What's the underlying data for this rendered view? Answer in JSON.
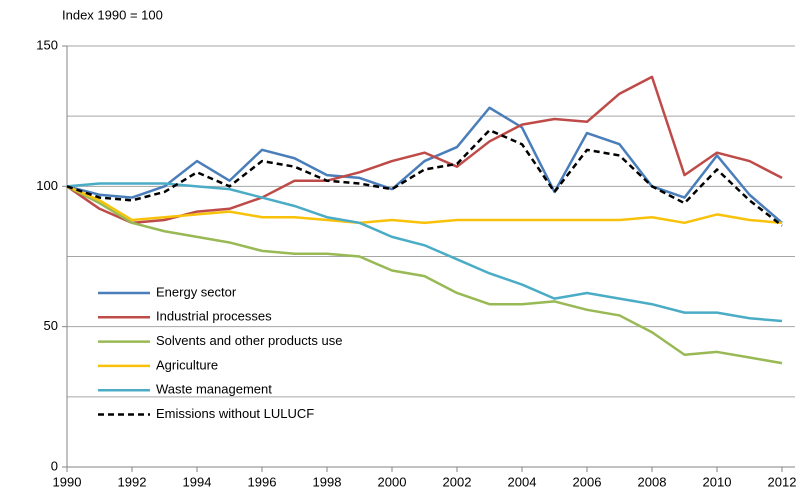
{
  "chart_data": {
    "type": "line",
    "y_label": "Index 1990 = 100",
    "x": [
      1990,
      1991,
      1992,
      1993,
      1994,
      1995,
      1996,
      1997,
      1998,
      1999,
      2000,
      2001,
      2002,
      2003,
      2004,
      2005,
      2006,
      2007,
      2008,
      2009,
      2010,
      2011,
      2012
    ],
    "xlim": [
      1990,
      2012
    ],
    "xticks": [
      1990,
      1992,
      1994,
      1996,
      1998,
      2000,
      2002,
      2004,
      2006,
      2008,
      2010,
      2012
    ],
    "ylim": [
      0,
      150
    ],
    "yticks": [
      0,
      50,
      100,
      150
    ],
    "ygrid": [
      25,
      50,
      75,
      100,
      125,
      150
    ],
    "legend": "lower left",
    "series": [
      {
        "name": "Energy sector",
        "color": "#4a7ebb",
        "dashed": false,
        "values": [
          100,
          97,
          96,
          100,
          109,
          102,
          113,
          110,
          104,
          103,
          99,
          109,
          114,
          128,
          121,
          98,
          119,
          115,
          100,
          96,
          111,
          97,
          87
        ]
      },
      {
        "name": "Industrial processes",
        "color": "#be4b48",
        "dashed": false,
        "values": [
          100,
          92,
          87,
          88,
          91,
          92,
          96,
          102,
          102,
          105,
          109,
          112,
          107,
          116,
          122,
          124,
          123,
          133,
          139,
          104,
          112,
          109,
          103
        ]
      },
      {
        "name": "Solvents and other products use",
        "color": "#98b954",
        "dashed": false,
        "values": [
          100,
          94,
          87,
          84,
          82,
          80,
          77,
          76,
          76,
          75,
          70,
          68,
          62,
          58,
          58,
          59,
          56,
          54,
          48,
          40,
          41,
          39,
          37
        ]
      },
      {
        "name": "Agriculture",
        "color": "#f9c20a",
        "dashed": false,
        "values": [
          100,
          95,
          88,
          89,
          90,
          91,
          89,
          89,
          88,
          87,
          88,
          87,
          88,
          88,
          88,
          88,
          88,
          88,
          89,
          87,
          90,
          88,
          87
        ]
      },
      {
        "name": "Waste management",
        "color": "#4bacc6",
        "dashed": false,
        "values": [
          100,
          101,
          101,
          101,
          100,
          99,
          96,
          93,
          89,
          87,
          82,
          79,
          74,
          69,
          65,
          60,
          62,
          60,
          58,
          55,
          55,
          53,
          52
        ]
      },
      {
        "name": "Emissions without LULUCF",
        "color": "#000000",
        "dashed": true,
        "values": [
          100,
          96,
          95,
          98,
          105,
          100,
          109,
          107,
          102,
          101,
          99,
          106,
          108,
          120,
          115,
          98,
          113,
          111,
          100,
          94,
          106,
          95,
          86
        ]
      }
    ]
  }
}
